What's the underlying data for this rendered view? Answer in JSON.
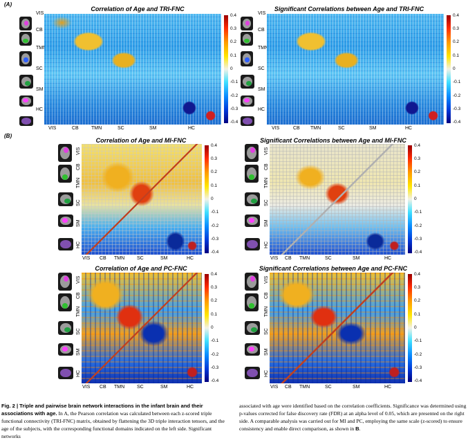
{
  "sections": {
    "a": "(A)",
    "b": "(B)"
  },
  "panels": [
    {
      "id": "tri-corr",
      "title": "Correlation of Age and TRI-FNC"
    },
    {
      "id": "tri-sig",
      "title": "Significant Correlations between Age and TRI-FNC"
    },
    {
      "id": "mi-corr",
      "title": "Correlation of Age and MI-FNC"
    },
    {
      "id": "mi-sig",
      "title": "Significant Correlations between Age and MI-FNC"
    },
    {
      "id": "pc-corr",
      "title": "Correlation of Age and PC-FNC"
    },
    {
      "id": "pc-sig",
      "title": "Significant Correlations between Age and PC-FNC"
    }
  ],
  "domains": [
    "VIS",
    "CB",
    "TMN",
    "SC",
    "SM",
    "HC"
  ],
  "colorbar_ticks": [
    "0.4",
    "0.3",
    "0.2",
    "0.1",
    "0",
    "-0.1",
    "-0.2",
    "-0.3",
    "-0.4"
  ],
  "caption": {
    "fig_label": "Fig. 2 | Triple and pairwise brain network interactions in the infant brain and their associations with age.",
    "left_text": "In A, the Pearson correlation was calculated between each z-scored triple functional connectivity (TRI-FNC) matrix, obtained by flattening the 3D triple interaction tensors, and the age of the subjects, with the corresponding functional domains indicated on the left side. Significant networks",
    "right_text_1": "associated with age were identified based on the correlation coefficients. Significance was determined using p-values corrected for false discovery rate (FDR) at an alpha level of 0.05, which are presented on the right side. A comparable analysis was carried out for MI and PC, employing the same scale (z-scored) to ensure consistency and enable direct comparison, as shown in",
    "right_text_bold": "B",
    "right_text_end": "."
  },
  "colors": {
    "scale_max": "#9b0000",
    "scale_high": "#ff9a00",
    "scale_mid": "#f2f2e6",
    "scale_low": "#0a8cff",
    "scale_min": "#000080"
  }
}
